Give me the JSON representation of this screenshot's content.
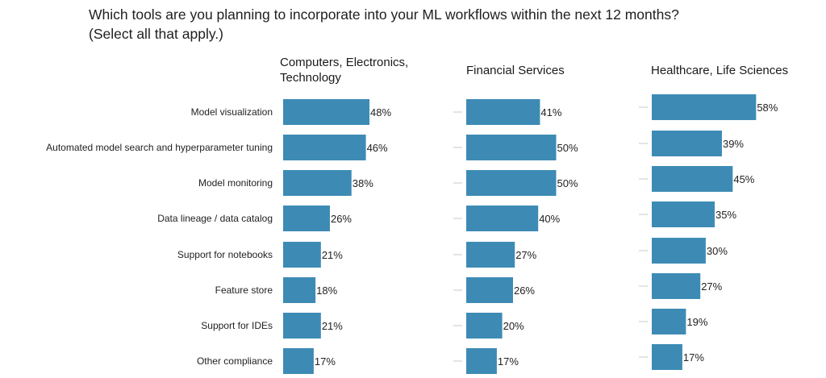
{
  "title": {
    "line1": "Which tools are you planning to incorporate into your ML workflows within the next 12 months?",
    "line2": "(Select all that apply.)"
  },
  "colors": {
    "bar": "#3d8bb5",
    "tick": "#c8c8c8"
  },
  "chart_data": [
    {
      "type": "bar",
      "orientation": "horizontal",
      "title_lines": [
        "Computers, Electronics,",
        "Technology"
      ],
      "categories": [
        "Model visualization",
        "Automated model search and hyperparameter tuning",
        "Model monitoring",
        "Data lineage / data catalog",
        "Support for notebooks",
        "Feature store",
        "Support for IDEs",
        "Other compliance"
      ],
      "values": [
        48,
        46,
        38,
        26,
        21,
        18,
        21,
        17
      ],
      "labels": [
        "48%",
        "46%",
        "38%",
        "26%",
        "21%",
        "18%",
        "21%",
        "17%"
      ],
      "unit": "%"
    },
    {
      "type": "bar",
      "orientation": "horizontal",
      "title_lines": [
        "Financial Services"
      ],
      "categories": [
        "Model visualization",
        "Automated model search and hyperparameter tuning",
        "Model monitoring",
        "Data lineage / data catalog",
        "Support for notebooks",
        "Feature store",
        "Support for IDEs",
        "Other compliance"
      ],
      "values": [
        41,
        50,
        50,
        40,
        27,
        26,
        20,
        17
      ],
      "labels": [
        "41%",
        "50%",
        "50%",
        "40%",
        "27%",
        "26%",
        "20%",
        "17%"
      ],
      "unit": "%"
    },
    {
      "type": "bar",
      "orientation": "horizontal",
      "title_lines": [
        "Healthcare, Life Sciences"
      ],
      "categories": [
        "Model visualization",
        "Automated model search and hyperparameter tuning",
        "Model monitoring",
        "Data lineage / data catalog",
        "Support for notebooks",
        "Feature store",
        "Support for IDEs",
        "Other compliance"
      ],
      "values": [
        58,
        39,
        45,
        35,
        30,
        27,
        19,
        17
      ],
      "labels": [
        "58%",
        "39%",
        "45%",
        "35%",
        "30%",
        "27%",
        "19%",
        "17%"
      ],
      "unit": "%"
    }
  ]
}
